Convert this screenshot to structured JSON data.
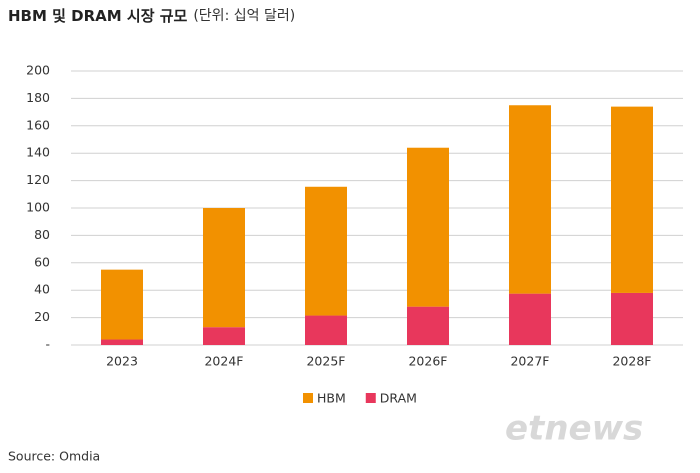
{
  "chart_data": {
    "type": "stacked_bar",
    "title": "HBM 및 DRAM 시장 규모",
    "subtitle": "(단위: 십억 달러)",
    "categories": [
      "2023",
      "2024F",
      "2025F",
      "2026F",
      "2027F",
      "2028F"
    ],
    "series": [
      {
        "name": "HBM",
        "color": "#f29100",
        "values": [
          51,
          87,
          94,
          116,
          137.5,
          136
        ]
      },
      {
        "name": "DRAM",
        "color": "#e8375c",
        "values": [
          4,
          13,
          21.5,
          28,
          37.5,
          38
        ]
      }
    ],
    "ylim": [
      0,
      200
    ],
    "yticks": [
      {
        "value": 0,
        "label": "-"
      },
      20,
      40,
      60,
      80,
      100,
      120,
      140,
      160,
      180,
      200
    ],
    "grid": true,
    "legend": "bottom",
    "source": "Source: Omdia",
    "watermark": "etnews"
  }
}
